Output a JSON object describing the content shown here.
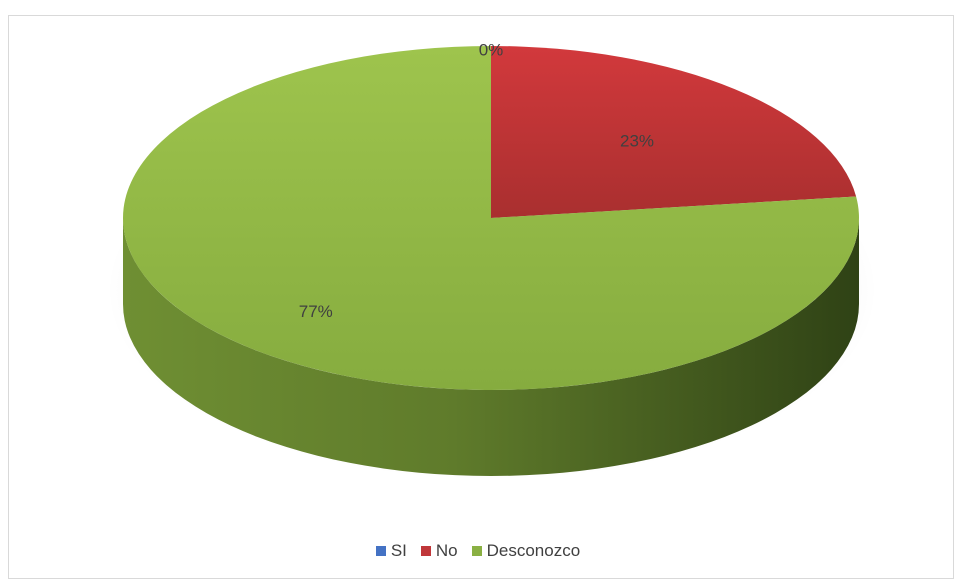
{
  "chart_data": {
    "type": "pie",
    "categories": [
      "SI",
      "No",
      "Desconozco"
    ],
    "values": [
      0,
      23,
      77
    ],
    "data_labels": [
      "0%",
      "23%",
      "77%"
    ],
    "colors": [
      "#4472c4",
      "#c0373a",
      "#8ab043"
    ],
    "legend_position": "bottom",
    "style": "3d"
  },
  "legend": {
    "items": [
      {
        "label": "SI",
        "color": "#4472c4"
      },
      {
        "label": "No",
        "color": "#c0373a"
      },
      {
        "label": "Desconozco",
        "color": "#8ab043"
      }
    ]
  }
}
